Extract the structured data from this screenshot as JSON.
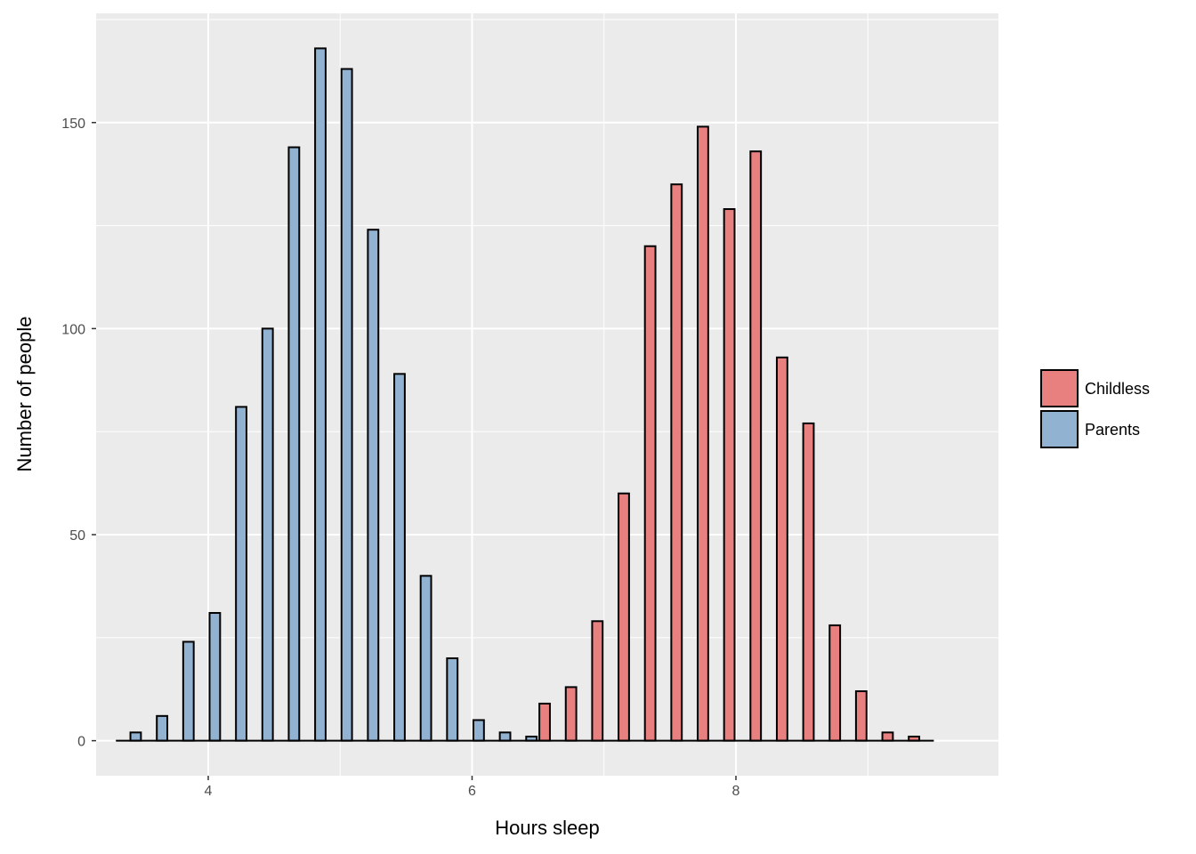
{
  "chart_data": {
    "type": "bar",
    "title": "",
    "xlabel": "Hours sleep",
    "ylabel": "Number of people",
    "xlim": [
      3.15,
      9.99
    ],
    "ylim": [
      -8.5,
      176.5
    ],
    "x_ticks": [
      4,
      6,
      8
    ],
    "y_ticks": [
      0,
      50,
      100,
      150
    ],
    "grid": true,
    "legend_position": "right",
    "bin_width": 0.2,
    "series": [
      {
        "name": "Childless",
        "color": "#e88080",
        "points": [
          {
            "x": 6.6,
            "y": 9
          },
          {
            "x": 6.8,
            "y": 13
          },
          {
            "x": 7.0,
            "y": 29
          },
          {
            "x": 7.2,
            "y": 60
          },
          {
            "x": 7.4,
            "y": 120
          },
          {
            "x": 7.6,
            "y": 135
          },
          {
            "x": 7.8,
            "y": 149
          },
          {
            "x": 8.0,
            "y": 129
          },
          {
            "x": 8.2,
            "y": 143
          },
          {
            "x": 8.4,
            "y": 93
          },
          {
            "x": 8.6,
            "y": 77
          },
          {
            "x": 8.8,
            "y": 28
          },
          {
            "x": 9.0,
            "y": 12
          },
          {
            "x": 9.2,
            "y": 2
          },
          {
            "x": 9.4,
            "y": 1
          }
        ]
      },
      {
        "name": "Parents",
        "color": "#92b2d2",
        "points": [
          {
            "x": 3.4,
            "y": 2
          },
          {
            "x": 3.6,
            "y": 6
          },
          {
            "x": 3.8,
            "y": 24
          },
          {
            "x": 4.0,
            "y": 31
          },
          {
            "x": 4.2,
            "y": 81
          },
          {
            "x": 4.4,
            "y": 100
          },
          {
            "x": 4.6,
            "y": 144
          },
          {
            "x": 4.8,
            "y": 168
          },
          {
            "x": 5.0,
            "y": 163
          },
          {
            "x": 5.2,
            "y": 124
          },
          {
            "x": 5.4,
            "y": 89
          },
          {
            "x": 5.6,
            "y": 40
          },
          {
            "x": 5.8,
            "y": 20
          },
          {
            "x": 6.0,
            "y": 5
          },
          {
            "x": 6.2,
            "y": 2
          },
          {
            "x": 6.4,
            "y": 1
          }
        ]
      }
    ]
  }
}
